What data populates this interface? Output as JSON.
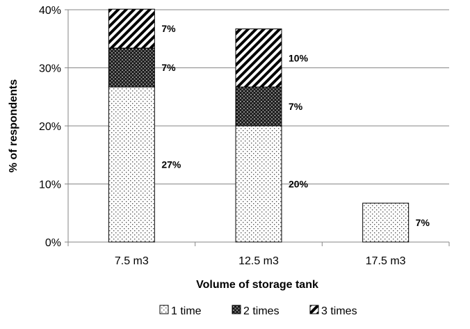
{
  "chart_data": {
    "type": "bar",
    "stacked": true,
    "title": "",
    "xlabel": "Volume of storage tank",
    "ylabel": "% of respondents",
    "categories": [
      "7.5 m3",
      "12.5 m3",
      "17.5 m3"
    ],
    "ylim": [
      0,
      40
    ],
    "yticks": [
      "0%",
      "10%",
      "20%",
      "30%",
      "40%"
    ],
    "grid": true,
    "legend_position": "bottom",
    "series": [
      {
        "name": "1 time",
        "pattern": "dots",
        "values": [
          26.7,
          20,
          6.7
        ],
        "labels": [
          "27%",
          "20%",
          "7%"
        ]
      },
      {
        "name": "2 times",
        "pattern": "checker",
        "values": [
          6.7,
          6.7,
          0
        ],
        "labels": [
          "7%",
          "7%",
          ""
        ]
      },
      {
        "name": "3 times",
        "pattern": "diagonal",
        "values": [
          6.7,
          10,
          0
        ],
        "labels": [
          "7%",
          "10%",
          ""
        ]
      }
    ]
  }
}
